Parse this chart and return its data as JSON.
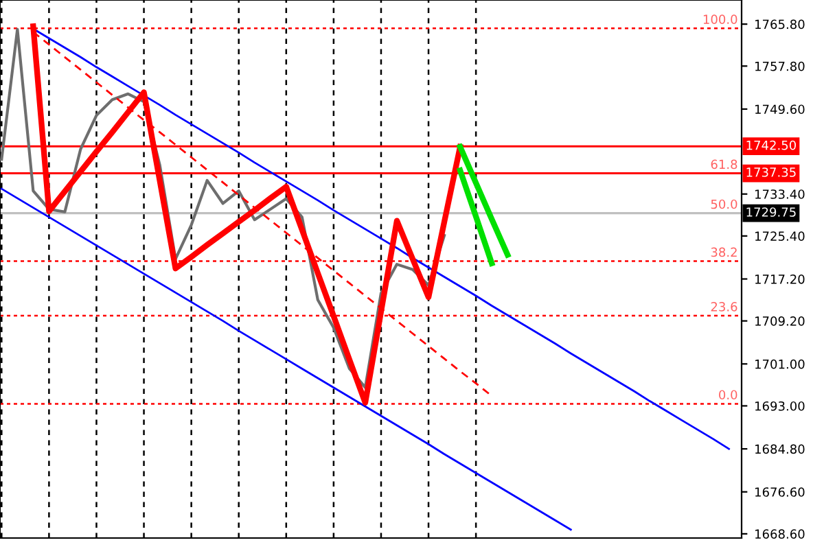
{
  "chart_data": {
    "type": "line",
    "tick_labels": "y",
    "grid": "x",
    "categories": [
      null,
      null,
      null,
      null,
      null,
      null,
      null,
      null,
      null,
      null,
      null,
      null,
      null,
      null,
      null,
      null,
      null,
      null,
      null,
      null,
      null,
      null,
      null,
      null,
      null,
      null,
      null,
      null,
      null,
      null,
      null,
      null,
      null,
      null,
      null,
      null,
      null,
      null,
      null,
      null,
      null,
      null,
      null,
      null,
      null,
      null,
      null
    ],
    "ylim": [
      1667.8,
      1770.4
    ],
    "yticks": [
      {
        "value": 1668.6,
        "label": "1668.60"
      },
      {
        "value": 1676.6,
        "label": "1676.60"
      },
      {
        "value": 1684.8,
        "label": "1684.80"
      },
      {
        "value": 1693.0,
        "label": "1693.00"
      },
      {
        "value": 1701.0,
        "label": "1701.00"
      },
      {
        "value": 1709.2,
        "label": "1709.20"
      },
      {
        "value": 1717.2,
        "label": "1717.20"
      },
      {
        "value": 1725.4,
        "label": "1725.40"
      },
      {
        "value": 1733.4,
        "label": "1733.40"
      },
      {
        "value": 1749.6,
        "label": "1749.60"
      },
      {
        "value": 1757.8,
        "label": "1757.80"
      },
      {
        "value": 1765.8,
        "label": "1765.80"
      }
    ],
    "series": [
      {
        "color": "#6e6e6e",
        "values": [
          1740.0,
          1764.8,
          1734.0,
          1730.5,
          1730.0,
          1742.0,
          1748.4,
          1751.4,
          1752.5,
          1751.0,
          1739.0,
          1721.0,
          1727.5,
          1736.0,
          1731.6,
          1734.0,
          1728.5,
          1730.5,
          1732.5,
          1729.0,
          1713.2,
          1707.9,
          1700.1,
          1696.5,
          1714.5,
          1720.0,
          1719.0,
          1716.0,
          1725.5,
          null,
          null,
          null,
          null,
          null,
          null,
          null,
          null,
          null,
          null,
          null,
          null,
          null,
          null,
          null,
          null,
          null,
          null
        ]
      },
      {
        "color": "#0000ff",
        "values": [
          null,
          null,
          1764.9,
          1763.1,
          1761.3,
          1759.5,
          1757.6,
          1755.8,
          1754.0,
          1752.2,
          1750.4,
          1748.5,
          1746.7,
          1744.9,
          1743.1,
          1741.3,
          1739.4,
          1737.6,
          1735.8,
          1734.0,
          1732.2,
          1730.3,
          1728.5,
          1726.7,
          1724.9,
          1723.1,
          1721.2,
          1719.4,
          1717.6,
          1715.8,
          1714.0,
          1712.1,
          1710.3,
          1708.5,
          1706.7,
          1704.9,
          1703.0,
          1701.2,
          1699.4,
          1697.6,
          1695.8,
          1693.9,
          1692.1,
          1690.3,
          1688.5,
          1686.7,
          1684.8
        ]
      },
      {
        "color": "#0000ff",
        "values": [
          1734.4,
          1732.6,
          1730.8,
          1729.0,
          1727.2,
          1725.4,
          1723.6,
          1721.8,
          1720.0,
          1718.2,
          1716.4,
          1714.6,
          1712.8,
          1711.0,
          1709.2,
          1707.3,
          1705.5,
          1703.7,
          1701.9,
          1700.1,
          1698.3,
          1696.5,
          1694.7,
          1692.9,
          1691.1,
          1689.3,
          1687.5,
          1685.7,
          1683.8,
          1682.0,
          1680.2,
          1678.4,
          1676.6,
          1674.8,
          1673.0,
          1671.2,
          1669.4,
          null,
          null,
          null,
          null,
          null,
          null,
          null,
          null,
          null,
          null
        ]
      },
      {
        "color": "#ff0000",
        "line_style": "dashed",
        "values": [
          null,
          null,
          1764.3,
          1761.9,
          1759.5,
          1757.1,
          1754.7,
          1752.3,
          1749.9,
          1747.5,
          1745.2,
          1742.8,
          1740.4,
          1738.0,
          1735.6,
          1733.2,
          1730.8,
          1728.4,
          1726.0,
          1723.6,
          1721.2,
          1718.8,
          1716.4,
          1714.0,
          1711.6,
          1709.2,
          1706.8,
          1704.4,
          1702.0,
          1699.6,
          1697.3,
          1694.9,
          null,
          null,
          null,
          null,
          null,
          null,
          null,
          null,
          null,
          null,
          null,
          null,
          null,
          null,
          null
        ]
      },
      {
        "color": "#ff0000",
        "values": [
          null,
          null,
          1765.4,
          1730.1,
          1733.9,
          1737.7,
          1741.5,
          1745.2,
          1749.0,
          1752.8,
          1736.0,
          1719.2,
          1721.4,
          1723.7,
          1725.9,
          1728.1,
          1730.3,
          1732.6,
          1734.8,
          1726.6,
          1718.3,
          1710.1,
          1701.8,
          1693.6,
          1711.0,
          1728.3,
          1721.0,
          1713.7,
          1728.1,
          1742.4,
          null,
          null,
          null,
          null,
          null,
          null,
          null,
          null,
          null,
          null,
          null,
          null,
          null,
          null,
          null,
          null,
          null
        ]
      },
      {
        "color": "#00e000",
        "values": [
          null,
          null,
          null,
          null,
          null,
          null,
          null,
          null,
          null,
          null,
          null,
          null,
          null,
          null,
          null,
          null,
          null,
          null,
          null,
          null,
          null,
          null,
          null,
          null,
          null,
          null,
          null,
          null,
          null,
          1737.9,
          1729.1,
          1720.2,
          null,
          null,
          null,
          null,
          null,
          null,
          null,
          null,
          null,
          null,
          null,
          null,
          null,
          null,
          null
        ]
      },
      {
        "color": "#00e000",
        "values": [
          null,
          null,
          null,
          null,
          null,
          null,
          null,
          null,
          null,
          null,
          null,
          null,
          null,
          null,
          null,
          null,
          null,
          null,
          null,
          null,
          null,
          null,
          null,
          null,
          null,
          null,
          null,
          null,
          null,
          1742.4,
          1735.5,
          1728.6,
          1721.8,
          null,
          null,
          null,
          null,
          null,
          null,
          null,
          null,
          null,
          null,
          null,
          null,
          null,
          null
        ]
      }
    ],
    "ref_lines": [
      {
        "axis": "y",
        "value": 1765.0,
        "color": "#ff0000",
        "line_style": "dotted"
      },
      {
        "axis": "y",
        "value": 1720.6,
        "color": "#ff0000",
        "line_style": "dotted"
      },
      {
        "axis": "y",
        "value": 1710.2,
        "color": "#ff0000",
        "line_style": "dotted"
      },
      {
        "axis": "y",
        "value": 1693.4,
        "color": "#ff0000",
        "line_style": "dotted"
      },
      {
        "axis": "y",
        "value": 1742.5,
        "label": "1742.50",
        "color": "#ff0000",
        "line_style": "solid"
      },
      {
        "axis": "y",
        "value": 1737.35,
        "label": "1737.35",
        "color": "#ff0000",
        "line_style": "solid"
      },
      {
        "axis": "y",
        "value": 1729.75,
        "label": "1729.75",
        "color": "#c0c0c0",
        "line_style": "solid"
      }
    ],
    "annotations": [
      {
        "text": "100.0",
        "y": 1765.0
      },
      {
        "text": "61.8",
        "y": 1737.35
      },
      {
        "text": "50.0",
        "y": 1729.75
      },
      {
        "text": "38.2",
        "y": 1720.6
      },
      {
        "text": "23.6",
        "y": 1710.2
      },
      {
        "text": "0.0",
        "y": 1693.4
      }
    ]
  }
}
